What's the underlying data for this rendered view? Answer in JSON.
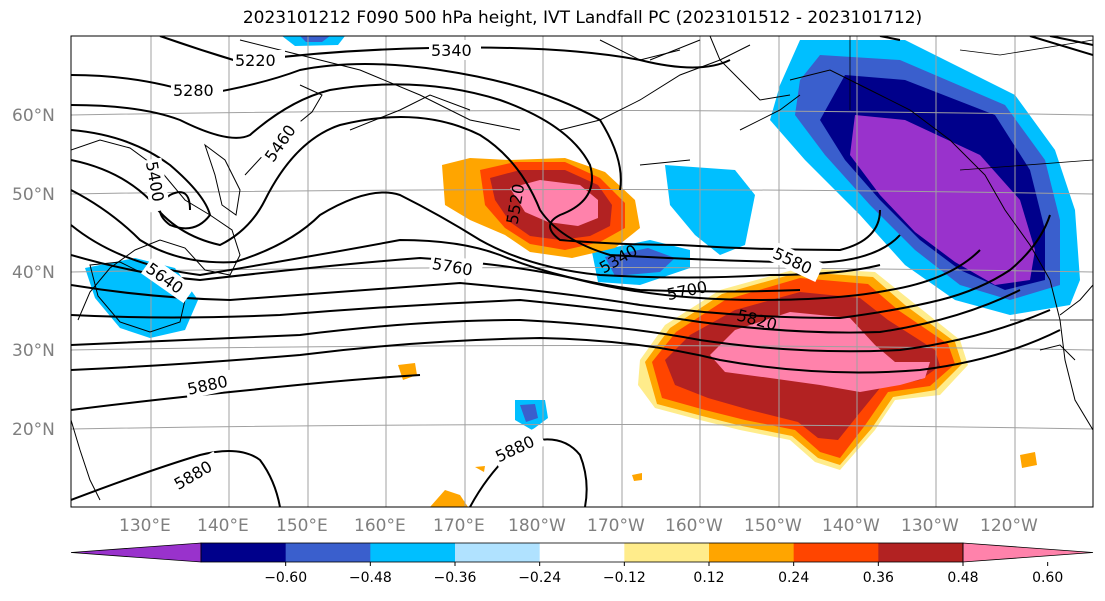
{
  "title": "2023101212 F090 500 hPa height, IVT Landfall PC (2023101512 - 2023101712)",
  "map": {
    "lon_labels": [
      "130°E",
      "140°E",
      "150°E",
      "160°E",
      "170°E",
      "180°W",
      "170°W",
      "160°W",
      "150°W",
      "140°W",
      "130°W",
      "120°W"
    ],
    "lat_labels": [
      "60°N",
      "50°N",
      "40°N",
      "30°N",
      "20°N"
    ],
    "gridline_color": "#a0a0a0",
    "coast_color": "#000000"
  },
  "colorbar": {
    "colors": [
      "#9932cc",
      "#00008b",
      "#3a5fcd",
      "#00bfff",
      "#b0e2ff",
      "#ffffff",
      "#ffec8b",
      "#ffa500",
      "#ff4500",
      "#b22222",
      "#ff82ab"
    ],
    "tick_labels": [
      "−0.60",
      "−0.48",
      "−0.36",
      "−0.24",
      "−0.12",
      "0.12",
      "0.24",
      "0.36",
      "0.48",
      "0.60"
    ]
  },
  "contour_labels": [
    "5220",
    "5340",
    "5280",
    "5460",
    "5400",
    "5520",
    "5640",
    "5340",
    "5760",
    "5700",
    "5580",
    "5820",
    "5880",
    "5880",
    "5880"
  ]
}
